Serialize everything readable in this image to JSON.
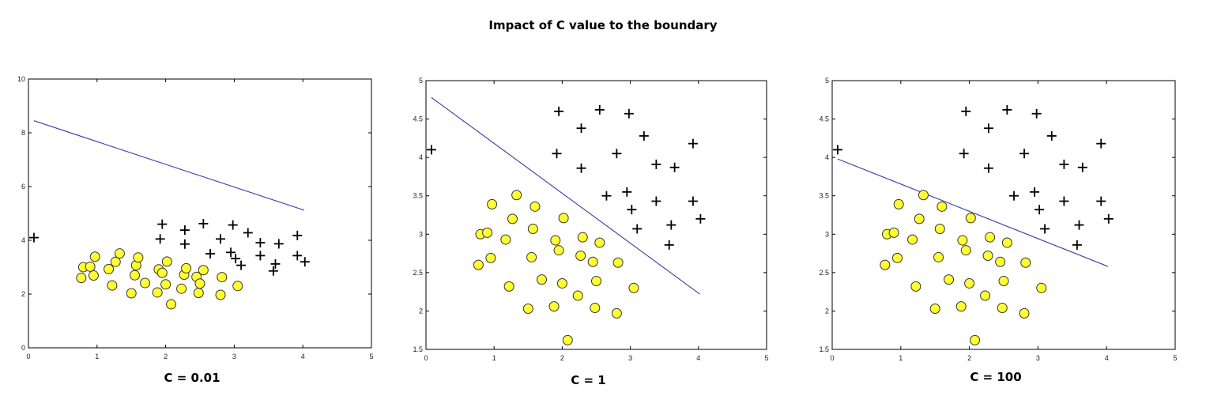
{
  "title": "Impact of C value to the boundary",
  "colors": {
    "positive": "#000000",
    "negative_fill": "#ffff33",
    "negative_stroke": "#333333",
    "boundary": "#3b3ba8",
    "axis": "#000000"
  },
  "chart_data": [
    {
      "type": "scatter",
      "caption": "C = 0.01",
      "xlim": [
        0,
        5
      ],
      "ylim": [
        0,
        10
      ],
      "xticks": [
        0,
        1,
        2,
        3,
        4,
        5
      ],
      "yticks": [
        0,
        2,
        4,
        6,
        8,
        10
      ],
      "grid": false,
      "boundary": {
        "x": [
          0.08,
          4.02
        ],
        "y": [
          8.45,
          5.12
        ]
      },
      "series": [
        {
          "marker": "plus",
          "points": [
            [
              0.08,
              4.1
            ],
            [
              1.95,
              4.6
            ],
            [
              2.55,
              4.62
            ],
            [
              2.98,
              4.57
            ],
            [
              2.28,
              4.38
            ],
            [
              3.2,
              4.28
            ],
            [
              3.92,
              4.18
            ],
            [
              1.92,
              4.05
            ],
            [
              2.8,
              4.05
            ],
            [
              2.28,
              3.86
            ],
            [
              3.38,
              3.91
            ],
            [
              3.65,
              3.87
            ],
            [
              2.65,
              3.5
            ],
            [
              2.95,
              3.55
            ],
            [
              3.38,
              3.43
            ],
            [
              3.92,
              3.43
            ],
            [
              3.02,
              3.32
            ],
            [
              4.03,
              3.2
            ],
            [
              3.6,
              3.12
            ],
            [
              3.1,
              3.07
            ],
            [
              3.57,
              2.86
            ]
          ]
        },
        {
          "marker": "circle",
          "points": [
            [
              0.77,
              2.6
            ],
            [
              0.8,
              3.0
            ],
            [
              0.9,
              3.02
            ],
            [
              0.97,
              3.39
            ],
            [
              0.95,
              2.69
            ],
            [
              1.17,
              2.93
            ],
            [
              1.22,
              2.32
            ],
            [
              1.27,
              3.2
            ],
            [
              1.33,
              3.51
            ],
            [
              1.5,
              2.03
            ],
            [
              1.55,
              2.7
            ],
            [
              1.57,
              3.07
            ],
            [
              1.6,
              3.36
            ],
            [
              1.7,
              2.41
            ],
            [
              1.88,
              2.06
            ],
            [
              1.9,
              2.92
            ],
            [
              1.95,
              2.79
            ],
            [
              2.0,
              2.36
            ],
            [
              2.02,
              3.21
            ],
            [
              2.08,
              1.62
            ],
            [
              2.23,
              2.2
            ],
            [
              2.27,
              2.72
            ],
            [
              2.3,
              2.96
            ],
            [
              2.45,
              2.64
            ],
            [
              2.48,
              2.04
            ],
            [
              2.5,
              2.39
            ],
            [
              2.55,
              2.89
            ],
            [
              2.8,
              1.97
            ],
            [
              2.82,
              2.63
            ],
            [
              3.05,
              2.3
            ]
          ]
        }
      ]
    },
    {
      "type": "scatter",
      "caption": "C = 1",
      "xlim": [
        0,
        5
      ],
      "ylim": [
        1.5,
        5
      ],
      "xticks": [
        0,
        1,
        2,
        3,
        4,
        5
      ],
      "yticks": [
        1.5,
        2,
        2.5,
        3,
        3.5,
        4,
        4.5,
        5
      ],
      "grid": false,
      "boundary": {
        "x": [
          0.08,
          4.02
        ],
        "y": [
          4.78,
          2.22
        ]
      },
      "series": [
        {
          "marker": "plus",
          "points": [
            [
              0.08,
              4.1
            ],
            [
              1.95,
              4.6
            ],
            [
              2.55,
              4.62
            ],
            [
              2.98,
              4.57
            ],
            [
              2.28,
              4.38
            ],
            [
              3.2,
              4.28
            ],
            [
              3.92,
              4.18
            ],
            [
              1.92,
              4.05
            ],
            [
              2.8,
              4.05
            ],
            [
              2.28,
              3.86
            ],
            [
              3.38,
              3.91
            ],
            [
              3.65,
              3.87
            ],
            [
              2.65,
              3.5
            ],
            [
              2.95,
              3.55
            ],
            [
              3.38,
              3.43
            ],
            [
              3.92,
              3.43
            ],
            [
              3.02,
              3.32
            ],
            [
              4.03,
              3.2
            ],
            [
              3.6,
              3.12
            ],
            [
              3.1,
              3.07
            ],
            [
              3.57,
              2.86
            ]
          ]
        },
        {
          "marker": "circle",
          "points": [
            [
              0.77,
              2.6
            ],
            [
              0.8,
              3.0
            ],
            [
              0.9,
              3.02
            ],
            [
              0.97,
              3.39
            ],
            [
              0.95,
              2.69
            ],
            [
              1.17,
              2.93
            ],
            [
              1.22,
              2.32
            ],
            [
              1.27,
              3.2
            ],
            [
              1.33,
              3.51
            ],
            [
              1.5,
              2.03
            ],
            [
              1.55,
              2.7
            ],
            [
              1.57,
              3.07
            ],
            [
              1.6,
              3.36
            ],
            [
              1.7,
              2.41
            ],
            [
              1.88,
              2.06
            ],
            [
              1.9,
              2.92
            ],
            [
              1.95,
              2.79
            ],
            [
              2.0,
              2.36
            ],
            [
              2.02,
              3.21
            ],
            [
              2.08,
              1.62
            ],
            [
              2.23,
              2.2
            ],
            [
              2.27,
              2.72
            ],
            [
              2.3,
              2.96
            ],
            [
              2.45,
              2.64
            ],
            [
              2.48,
              2.04
            ],
            [
              2.5,
              2.39
            ],
            [
              2.55,
              2.89
            ],
            [
              2.8,
              1.97
            ],
            [
              2.82,
              2.63
            ],
            [
              3.05,
              2.3
            ]
          ]
        }
      ]
    },
    {
      "type": "scatter",
      "caption": "C = 100",
      "xlim": [
        0,
        5
      ],
      "ylim": [
        1.5,
        5
      ],
      "xticks": [
        0,
        1,
        2,
        3,
        4,
        5
      ],
      "yticks": [
        1.5,
        2,
        2.5,
        3,
        3.5,
        4,
        4.5,
        5
      ],
      "grid": false,
      "boundary": {
        "x": [
          0.08,
          4.02
        ],
        "y": [
          3.98,
          2.58
        ]
      },
      "series": [
        {
          "marker": "plus",
          "points": [
            [
              0.08,
              4.1
            ],
            [
              1.95,
              4.6
            ],
            [
              2.55,
              4.62
            ],
            [
              2.98,
              4.57
            ],
            [
              2.28,
              4.38
            ],
            [
              3.2,
              4.28
            ],
            [
              3.92,
              4.18
            ],
            [
              1.92,
              4.05
            ],
            [
              2.8,
              4.05
            ],
            [
              2.28,
              3.86
            ],
            [
              3.38,
              3.91
            ],
            [
              3.65,
              3.87
            ],
            [
              2.65,
              3.5
            ],
            [
              2.95,
              3.55
            ],
            [
              3.38,
              3.43
            ],
            [
              3.92,
              3.43
            ],
            [
              3.02,
              3.32
            ],
            [
              4.03,
              3.2
            ],
            [
              3.6,
              3.12
            ],
            [
              3.1,
              3.07
            ],
            [
              3.57,
              2.86
            ]
          ]
        },
        {
          "marker": "circle",
          "points": [
            [
              0.77,
              2.6
            ],
            [
              0.8,
              3.0
            ],
            [
              0.9,
              3.02
            ],
            [
              0.97,
              3.39
            ],
            [
              0.95,
              2.69
            ],
            [
              1.17,
              2.93
            ],
            [
              1.22,
              2.32
            ],
            [
              1.27,
              3.2
            ],
            [
              1.33,
              3.51
            ],
            [
              1.5,
              2.03
            ],
            [
              1.55,
              2.7
            ],
            [
              1.57,
              3.07
            ],
            [
              1.6,
              3.36
            ],
            [
              1.7,
              2.41
            ],
            [
              1.88,
              2.06
            ],
            [
              1.9,
              2.92
            ],
            [
              1.95,
              2.79
            ],
            [
              2.0,
              2.36
            ],
            [
              2.02,
              3.21
            ],
            [
              2.08,
              1.62
            ],
            [
              2.23,
              2.2
            ],
            [
              2.27,
              2.72
            ],
            [
              2.3,
              2.96
            ],
            [
              2.45,
              2.64
            ],
            [
              2.48,
              2.04
            ],
            [
              2.5,
              2.39
            ],
            [
              2.55,
              2.89
            ],
            [
              2.8,
              1.97
            ],
            [
              2.82,
              2.63
            ],
            [
              3.05,
              2.3
            ]
          ]
        }
      ]
    }
  ]
}
